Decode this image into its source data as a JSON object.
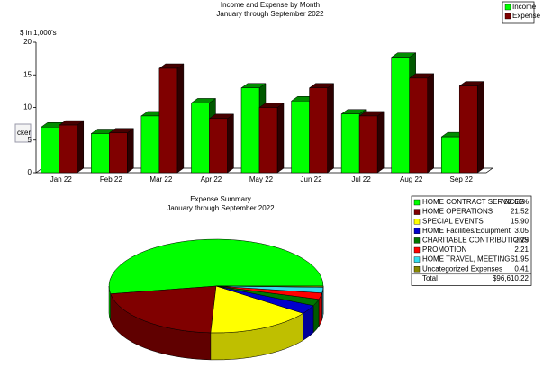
{
  "side_tab": "cker",
  "chart_data": [
    {
      "type": "bar3d",
      "title": "Income and Expense by Month",
      "subtitle": "January through September 2022",
      "y_label": "$ in 1,000's",
      "categories": [
        "Jan 22",
        "Feb 22",
        "Mar 22",
        "Apr 22",
        "May 22",
        "Jun 22",
        "Jul 22",
        "Aug 22",
        "Sep 22"
      ],
      "series": [
        {
          "name": "Income",
          "color": "#00ff00",
          "values": [
            7,
            6,
            8.7,
            10.7,
            13,
            11,
            9,
            17.7,
            5.5
          ]
        },
        {
          "name": "Expense",
          "color": "#800000",
          "values": [
            7.3,
            6.1,
            16,
            8.3,
            10,
            13,
            8.7,
            14.5,
            13.3
          ]
        }
      ],
      "ylim": [
        0,
        20
      ],
      "yticks": [
        0,
        5,
        10,
        15,
        20
      ],
      "legend": "top-right"
    },
    {
      "type": "pie3d",
      "title": "Expense Summary",
      "subtitle": "January through September 2022",
      "categories": [
        "HOME CONTRACT SERVICES",
        "HOME OPERATIONS",
        "SPECIAL EVENTS",
        "HOME Facilities/Equipment",
        "CHARITABLE CONTRIBUTIONS",
        "PROMOTION",
        "HOME TRAVEL, MEETINGS",
        "Uncategorized Expenses"
      ],
      "values": [
        52.66,
        21.52,
        15.9,
        3.05,
        2.29,
        2.21,
        1.95,
        0.41
      ],
      "value_labels": [
        "52.66%",
        "21.52",
        "15.90",
        "3.05",
        "2.29",
        "2.21",
        "1.95",
        "0.41"
      ],
      "colors": [
        "#00ff00",
        "#800000",
        "#ffff00",
        "#0000cc",
        "#007700",
        "#ff0000",
        "#33ddee",
        "#888800"
      ],
      "total": {
        "label": "Total",
        "value": 96610.22,
        "value_label": "$96,610.22"
      },
      "legend": "right"
    }
  ]
}
